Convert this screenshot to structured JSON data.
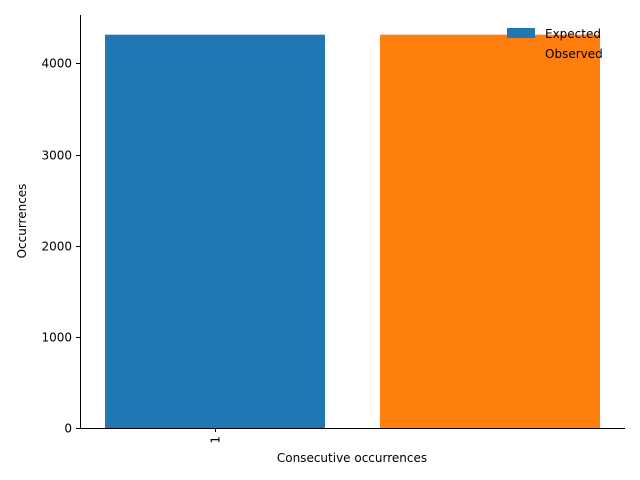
{
  "chart_data": {
    "type": "bar",
    "categories": [
      "1"
    ],
    "series": [
      {
        "name": "Expected",
        "values": [
          4315
        ],
        "color": "#1f77b4"
      },
      {
        "name": "Observed",
        "values": [
          4315
        ],
        "color": "#ff7f0e"
      }
    ],
    "xlabel": "Consecutive occurrences",
    "ylabel": "Occurrences",
    "ylim": [
      0,
      4531
    ],
    "yticks": [
      0,
      1000,
      2000,
      3000,
      4000
    ],
    "grid": false,
    "legend_position": "top-right",
    "legend_frame": false
  }
}
